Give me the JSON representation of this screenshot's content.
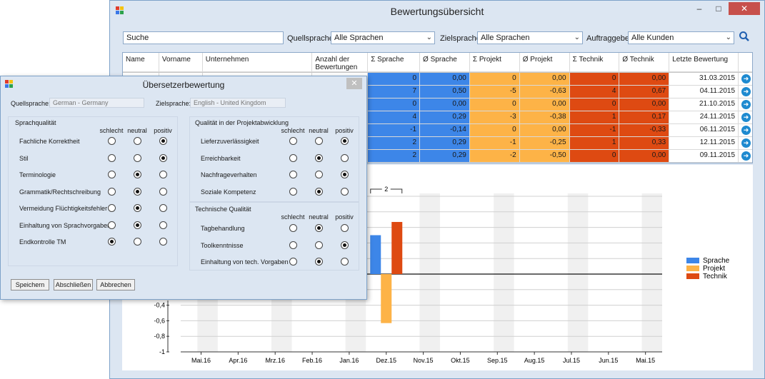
{
  "main": {
    "title": "Bewertungsübersicht",
    "search_value": "Suche",
    "filters": {
      "quellsprache_label": "Quellsprache",
      "quellsprache_value": "Alle Sprachen",
      "zielsprache_label": "Zielsprache",
      "zielsprache_value": "Alle Sprachen",
      "auftraggeber_label": "Auftraggeber",
      "auftraggeber_value": "Alle Kunden"
    },
    "grid": {
      "headers": [
        "Name",
        "Vorname",
        "Unternehmen",
        "Anzahl der Bewertungen",
        "Σ Sprache",
        "Ø Sprache",
        "Σ Projekt",
        "Ø Projekt",
        "Σ Technik",
        "Ø Technik",
        "Letzte Bewertung"
      ],
      "rows": [
        [
          "0",
          "0,00",
          "0",
          "0,00",
          "0",
          "0,00",
          "31.03.2015"
        ],
        [
          "7",
          "0,50",
          "-5",
          "-0,63",
          "4",
          "0,67",
          "04.11.2015"
        ],
        [
          "0",
          "0,00",
          "0",
          "0,00",
          "0",
          "0,00",
          "21.10.2015"
        ],
        [
          "4",
          "0,29",
          "-3",
          "-0,38",
          "1",
          "0,17",
          "24.11.2015"
        ],
        [
          "-1",
          "-0,14",
          "0",
          "0,00",
          "-1",
          "-0,33",
          "06.11.2015"
        ],
        [
          "2",
          "0,29",
          "-1",
          "-0,25",
          "1",
          "0,33",
          "12.11.2015"
        ],
        [
          "2",
          "0,29",
          "-2",
          "-0,50",
          "0",
          "0,00",
          "09.11.2015"
        ]
      ]
    }
  },
  "chart_data": {
    "type": "bar",
    "categories": [
      "Mai.16",
      "Apr.16",
      "Mrz.16",
      "Feb.16",
      "Jan.16",
      "Dez.15",
      "Nov.15",
      "Okt.15",
      "Sep.15",
      "Aug.15",
      "Jul.15",
      "Jun.15",
      "Mai.15"
    ],
    "series": [
      {
        "name": "Sprache",
        "color": "#3d86e8",
        "values": [
          0,
          0,
          0,
          0,
          0,
          0.5,
          0,
          0,
          0,
          0,
          0,
          0,
          0
        ]
      },
      {
        "name": "Projekt",
        "color": "#fdb347",
        "values": [
          0,
          0,
          0,
          0,
          0,
          -0.63,
          0,
          0,
          0,
          0,
          0,
          0,
          0
        ]
      },
      {
        "name": "Technik",
        "color": "#de4a12",
        "values": [
          0,
          0,
          0,
          0,
          0,
          0.67,
          0,
          0,
          0,
          0,
          0,
          0,
          0
        ]
      }
    ],
    "yticks": [
      "-0,4",
      "-0,6",
      "-0,8",
      "-1"
    ],
    "ylim": [
      -1,
      1
    ],
    "annotation": "2",
    "legend_position": "right"
  },
  "dialog": {
    "title": "Übersetzerbewertung",
    "quellsprache_label": "Quellsprache:",
    "quellsprache_value": "German - Germany",
    "zielsprache_label": "Zielsprache:",
    "zielsprache_value": "English - United Kingdom",
    "columns": [
      "schlecht",
      "neutral",
      "positiv"
    ],
    "sprachqualitaet": {
      "title": "Sprachqualität",
      "items": [
        {
          "label": "Fachliche Korrektheit",
          "selected": 2
        },
        {
          "label": "Stil",
          "selected": 2
        },
        {
          "label": "Terminologie",
          "selected": 1
        },
        {
          "label": "Grammatik/Rechtschreibung",
          "selected": 1
        },
        {
          "label": "Vermeidung Flüchtigkeitsfehler",
          "selected": 1
        },
        {
          "label": "Einhaltung von Sprachvorgaben",
          "selected": 1
        },
        {
          "label": "Endkontrolle TM",
          "selected": 0
        }
      ]
    },
    "projektabwicklung": {
      "title": "Qualität in der Projektabwicklung",
      "items": [
        {
          "label": "Lieferzuverlässigkeit",
          "selected": 2
        },
        {
          "label": "Erreichbarkeit",
          "selected": 1
        },
        {
          "label": "Nachfrageverhalten",
          "selected": 2
        },
        {
          "label": "Soziale Kompetenz",
          "selected": 1
        }
      ]
    },
    "technik": {
      "title": "Technische Qualität",
      "items": [
        {
          "label": "Tagbehandlung",
          "selected": 1
        },
        {
          "label": "Toolkenntnisse",
          "selected": 2
        },
        {
          "label": "Einhaltung von tech. Vorgaben",
          "selected": 1
        }
      ]
    },
    "buttons": {
      "save": "Speichern",
      "finish": "Abschließen",
      "cancel": "Abbrechen"
    }
  }
}
